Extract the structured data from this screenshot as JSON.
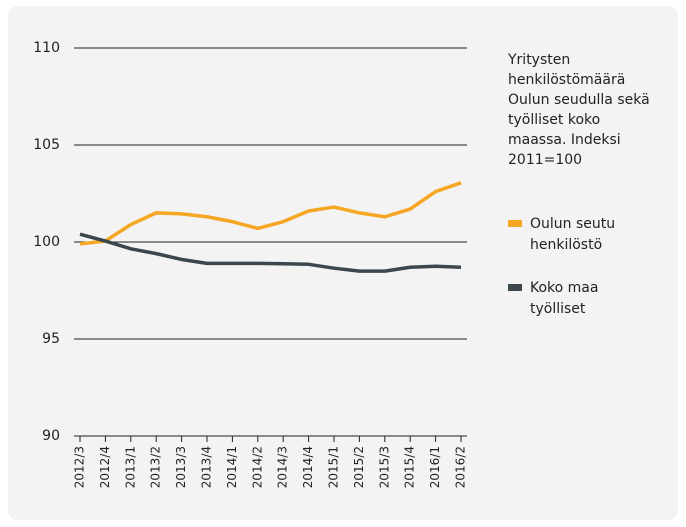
{
  "chart_data": {
    "type": "line",
    "title": "Yritysten henkilöstömäärä Oulun seudulla sekä työlliset koko maassa. Indeksi 2011=100",
    "categories": [
      "2012/3",
      "2012/4",
      "2013/1",
      "2013/2",
      "2013/3",
      "2013/4",
      "2014/1",
      "2014/2",
      "2014/3",
      "2014/4",
      "2015/1",
      "2015/2",
      "2015/3",
      "2015/4",
      "2016/1",
      "2016/2"
    ],
    "series": [
      {
        "name": "Oulun seutu henkilöstö",
        "color": "#f5a623",
        "values": [
          99.9,
          100.05,
          100.9,
          101.5,
          101.45,
          101.3,
          101.05,
          100.7,
          101.05,
          101.6,
          101.8,
          101.5,
          101.3,
          101.7,
          102.6,
          103.05
        ]
      },
      {
        "name": "Koko maa työlliset",
        "color": "#3b474d",
        "values": [
          100.4,
          100.05,
          99.65,
          99.4,
          99.1,
          98.9,
          98.9,
          98.9,
          98.88,
          98.85,
          98.65,
          98.5,
          98.5,
          98.7,
          98.75,
          98.7
        ]
      }
    ],
    "ylim": [
      90,
      110
    ],
    "yticks": [
      90,
      95,
      100,
      105,
      110
    ],
    "grid": true,
    "legend": "right"
  }
}
